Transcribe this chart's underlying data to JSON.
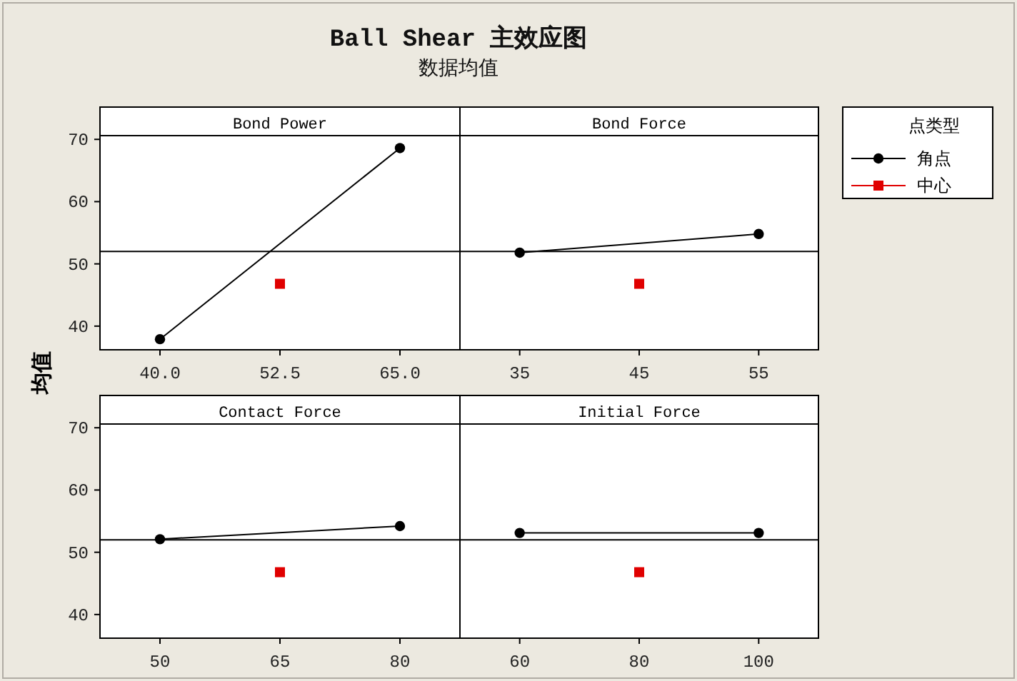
{
  "chart_data": [
    {
      "type": "line",
      "title": "Bond Power",
      "annotations": [
        "Ball Shear 主效应图",
        "数据均值"
      ],
      "ylabel": "均值",
      "legend": "right",
      "legend_title": "点类型",
      "xlim": [
        33.75,
        71.25
      ],
      "xticks": [
        {
          "value": 40,
          "label": "40.0"
        },
        52.5,
        {
          "value": 65,
          "label": "65.0"
        }
      ],
      "ylim": [
        36.2,
        70.6
      ],
      "yticks": [
        40,
        50,
        60,
        70
      ],
      "tick_labels": "xy",
      "grid": false,
      "ref_lines": [
        {
          "axis": "y",
          "value": 52.0
        }
      ],
      "series": [
        {
          "name": "角点",
          "color": "#000000",
          "marker": "circle",
          "x": [
            40,
            65
          ],
          "values": [
            37.9,
            68.6
          ]
        },
        {
          "name": "中心",
          "type": "scatter",
          "color": "#e00000",
          "marker": "square",
          "x": [
            52.5
          ],
          "values": [
            46.8
          ]
        }
      ]
    },
    {
      "type": "line",
      "title": "Bond Force",
      "xlim": [
        30,
        60
      ],
      "xticks": [
        35,
        45,
        55
      ],
      "ylim": [
        36.2,
        70.6
      ],
      "tick_labels": "x",
      "grid": false,
      "ref_lines": [
        {
          "axis": "y",
          "value": 52.0
        }
      ],
      "series": [
        {
          "color": "#000000",
          "marker": "circle",
          "x": [
            35,
            55
          ],
          "values": [
            51.8,
            54.8
          ]
        },
        {
          "type": "scatter",
          "color": "#e00000",
          "marker": "square",
          "x": [
            45
          ],
          "values": [
            46.8
          ]
        }
      ]
    },
    {
      "type": "line",
      "title": "Contact Force",
      "xlim": [
        42.5,
        87.5
      ],
      "xticks": [
        50,
        65,
        80
      ],
      "ylim": [
        36.2,
        70.6
      ],
      "yticks": [
        40,
        50,
        60,
        70
      ],
      "tick_labels": "xy",
      "grid": false,
      "ref_lines": [
        {
          "axis": "y",
          "value": 52.0
        }
      ],
      "series": [
        {
          "color": "#000000",
          "marker": "circle",
          "x": [
            50,
            80
          ],
          "values": [
            52.1,
            54.2
          ]
        },
        {
          "type": "scatter",
          "color": "#e00000",
          "marker": "square",
          "x": [
            65
          ],
          "values": [
            46.8
          ]
        }
      ]
    },
    {
      "type": "line",
      "title": "Initial Force",
      "xlim": [
        50,
        110
      ],
      "xticks": [
        60,
        80,
        100
      ],
      "ylim": [
        36.2,
        70.6
      ],
      "tick_labels": "x",
      "grid": false,
      "ref_lines": [
        {
          "axis": "y",
          "value": 52.0
        }
      ],
      "series": [
        {
          "color": "#000000",
          "marker": "circle",
          "x": [
            60,
            100
          ],
          "values": [
            53.1,
            53.1
          ]
        },
        {
          "type": "scatter",
          "color": "#e00000",
          "marker": "square",
          "x": [
            80
          ],
          "values": [
            46.8
          ]
        }
      ]
    }
  ]
}
